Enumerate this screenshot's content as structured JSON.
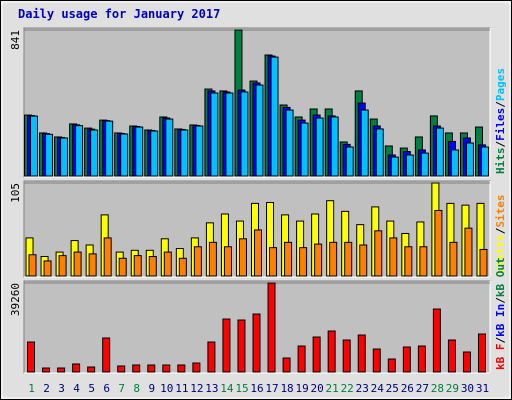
{
  "title": "Daily usage for January 2017",
  "legend_separator": "/",
  "chart_data": [
    {
      "type": "bar",
      "ylim": [
        0,
        841
      ],
      "yticks": [
        841
      ],
      "series": [
        {
          "name": "Hits",
          "color": "#008040",
          "values": [
            351,
            248,
            225,
            300,
            276,
            322,
            248,
            288,
            265,
            340,
            271,
            294,
            501,
            490,
            841,
            547,
            697,
            409,
            340,
            386,
            386,
            196,
            490,
            328,
            173,
            161,
            225,
            346,
            248,
            248,
            282
          ]
        },
        {
          "name": "Files",
          "color": "#0000ff",
          "values": [
            348,
            244,
            222,
            295,
            270,
            319,
            245,
            285,
            262,
            334,
            268,
            291,
            490,
            484,
            495,
            536,
            691,
            395,
            322,
            351,
            346,
            182,
            420,
            288,
            121,
            141,
            150,
            288,
            199,
            219,
            179
          ]
        },
        {
          "name": "Pages",
          "color": "#00c0ff",
          "values": [
            345,
            240,
            219,
            290,
            265,
            316,
            242,
            282,
            259,
            328,
            265,
            288,
            478,
            478,
            484,
            524,
            685,
            380,
            305,
            334,
            340,
            167,
            380,
            271,
            109,
            121,
            132,
            276,
            150,
            190,
            167
          ]
        }
      ]
    },
    {
      "type": "bar",
      "ylim": [
        0,
        105
      ],
      "yticks": [
        105
      ],
      "series": [
        {
          "name": "Visits",
          "color": "#ffff00",
          "values": [
            43,
            22,
            27,
            40,
            35,
            69,
            27,
            29,
            29,
            42,
            31,
            43,
            60,
            70,
            62,
            82,
            83,
            69,
            62,
            70,
            85,
            73,
            58,
            78,
            62,
            48,
            61,
            105,
            82,
            80,
            82
          ]
        },
        {
          "name": "Sites",
          "color": "#ff8000",
          "values": [
            24,
            17,
            23,
            27,
            25,
            43,
            20,
            23,
            22,
            27,
            20,
            33,
            38,
            33,
            42,
            52,
            32,
            38,
            32,
            36,
            38,
            38,
            35,
            51,
            43,
            33,
            33,
            74,
            38,
            54,
            30
          ]
        }
      ]
    },
    {
      "type": "bar",
      "ylim": [
        0,
        39260
      ],
      "yticks": [
        39260
      ],
      "categories": [
        "1",
        "2",
        "3",
        "4",
        "5",
        "6",
        "7",
        "8",
        "9",
        "10",
        "11",
        "12",
        "13",
        "14",
        "15",
        "16",
        "17",
        "18",
        "19",
        "20",
        "21",
        "22",
        "23",
        "24",
        "25",
        "26",
        "27",
        "28",
        "29",
        "30",
        "31"
      ],
      "label_colors": [
        "#008040",
        "#000080",
        "#000080",
        "#000080",
        "#000080",
        "#000080",
        "#008040",
        "#008040",
        "#000080",
        "#000080",
        "#000080",
        "#000080",
        "#000080",
        "#008040",
        "#008040",
        "#000080",
        "#000080",
        "#000080",
        "#000080",
        "#000080",
        "#008040",
        "#008040",
        "#000080",
        "#000080",
        "#000080",
        "#000080",
        "#000080",
        "#008040",
        "#008040",
        "#000080",
        "#000080"
      ],
      "series": [
        {
          "name": "kB F",
          "color": "#ff0000",
          "values": [
            13230,
            1760,
            1760,
            3530,
            2200,
            15000,
            2650,
            3090,
            3090,
            3090,
            3090,
            3970,
            13230,
            23370,
            22930,
            25580,
            39260,
            6170,
            11470,
            15440,
            18080,
            14110,
            16320,
            10140,
            5730,
            11030,
            11470,
            27780,
            14110,
            8820,
            16760
          ]
        },
        {
          "name": "kB In",
          "color": "#0000ff"
        },
        {
          "name": "kB Out",
          "color": "#008040"
        }
      ]
    }
  ]
}
